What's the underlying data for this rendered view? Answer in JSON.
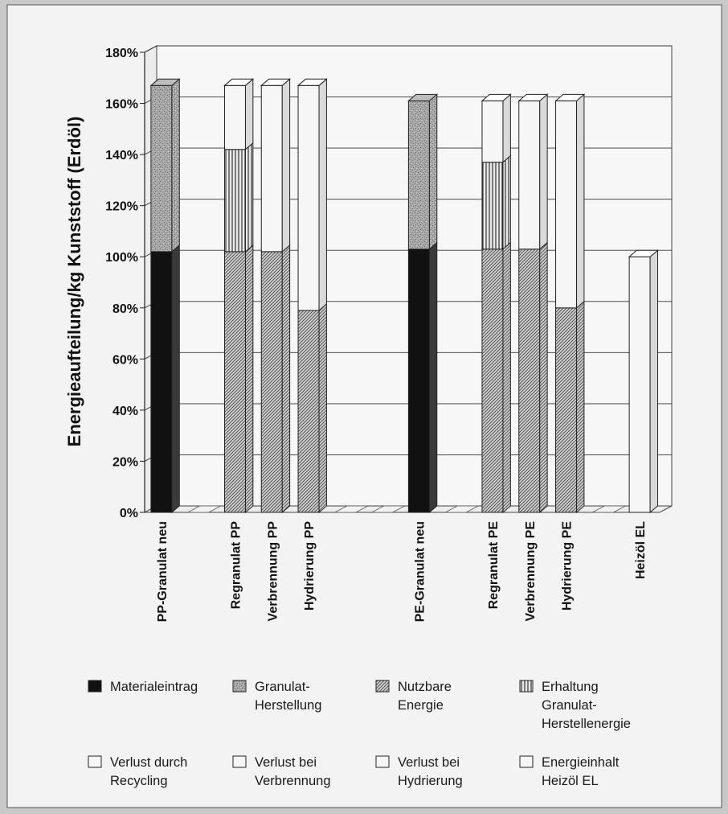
{
  "chart_data": {
    "type": "bar",
    "stacked": true,
    "three_d": true,
    "ylabel": "Energieaufteilung/kg Kunststoff (Erdöl)",
    "ylim": [
      0,
      180
    ],
    "yticks": [
      "0%",
      "20%",
      "40%",
      "60%",
      "80%",
      "100%",
      "120%",
      "140%",
      "160%",
      "180%"
    ],
    "grid": true,
    "categories": [
      "PP-Granulat neu",
      "",
      "Regranulat PP",
      "Verbrennung PP",
      "Hydrierung PP",
      "",
      "",
      "PE-Granulat neu",
      "",
      "Regranulat PE",
      "Verbrennung PE",
      "Hydrierung PE",
      "",
      "Heizöl EL"
    ],
    "series": [
      {
        "name": "Materialeintrag",
        "pattern": "black",
        "values": [
          102,
          0,
          0,
          0,
          0,
          0,
          0,
          103,
          0,
          0,
          0,
          0,
          0,
          0
        ]
      },
      {
        "name": "Granulat-Herstellung",
        "pattern": "speckle",
        "values": [
          65,
          0,
          0,
          0,
          0,
          0,
          0,
          58,
          0,
          0,
          0,
          0,
          0,
          0
        ]
      },
      {
        "name": "Nutzbare Energie",
        "pattern": "diagonal",
        "values": [
          0,
          0,
          102,
          102,
          79,
          0,
          0,
          0,
          0,
          103,
          103,
          80,
          0,
          0
        ]
      },
      {
        "name": "Erhaltung Granulat-Herstellenergie",
        "pattern": "vertical",
        "values": [
          0,
          0,
          40,
          0,
          0,
          0,
          0,
          0,
          0,
          34,
          0,
          0,
          0,
          0
        ]
      },
      {
        "name": "Verlust durch Recycling",
        "pattern": "white",
        "values": [
          0,
          0,
          25,
          0,
          0,
          0,
          0,
          0,
          0,
          24,
          0,
          0,
          0,
          0
        ]
      },
      {
        "name": "Verlust bei Verbrennung",
        "pattern": "white",
        "values": [
          0,
          0,
          0,
          65,
          0,
          0,
          0,
          0,
          0,
          0,
          58,
          0,
          0,
          0
        ]
      },
      {
        "name": "Verlust bei Hydrierung",
        "pattern": "white",
        "values": [
          0,
          0,
          0,
          0,
          88,
          0,
          0,
          0,
          0,
          0,
          0,
          81,
          0,
          0
        ]
      },
      {
        "name": "Energieinhalt Heizöl EL",
        "pattern": "white",
        "values": [
          0,
          0,
          0,
          0,
          0,
          0,
          0,
          0,
          0,
          0,
          0,
          0,
          0,
          100
        ]
      }
    ],
    "legend": [
      {
        "lines": [
          "Materialeintrag"
        ],
        "pattern": "black"
      },
      {
        "lines": [
          "Granulat-",
          "Herstellung"
        ],
        "pattern": "speckle"
      },
      {
        "lines": [
          "Nutzbare",
          "Energie"
        ],
        "pattern": "diagonal"
      },
      {
        "lines": [
          "Erhaltung",
          "Granulat-",
          "Herstellenergie"
        ],
        "pattern": "vertical"
      },
      {
        "lines": [
          "Verlust durch",
          "Recycling"
        ],
        "pattern": "white"
      },
      {
        "lines": [
          "Verlust bei",
          "Verbrennung"
        ],
        "pattern": "white"
      },
      {
        "lines": [
          "Verlust bei",
          "Hydrierung"
        ],
        "pattern": "white"
      },
      {
        "lines": [
          "Energieinhalt",
          "Heizöl EL"
        ],
        "pattern": "white"
      }
    ],
    "legend_position": "bottom"
  }
}
